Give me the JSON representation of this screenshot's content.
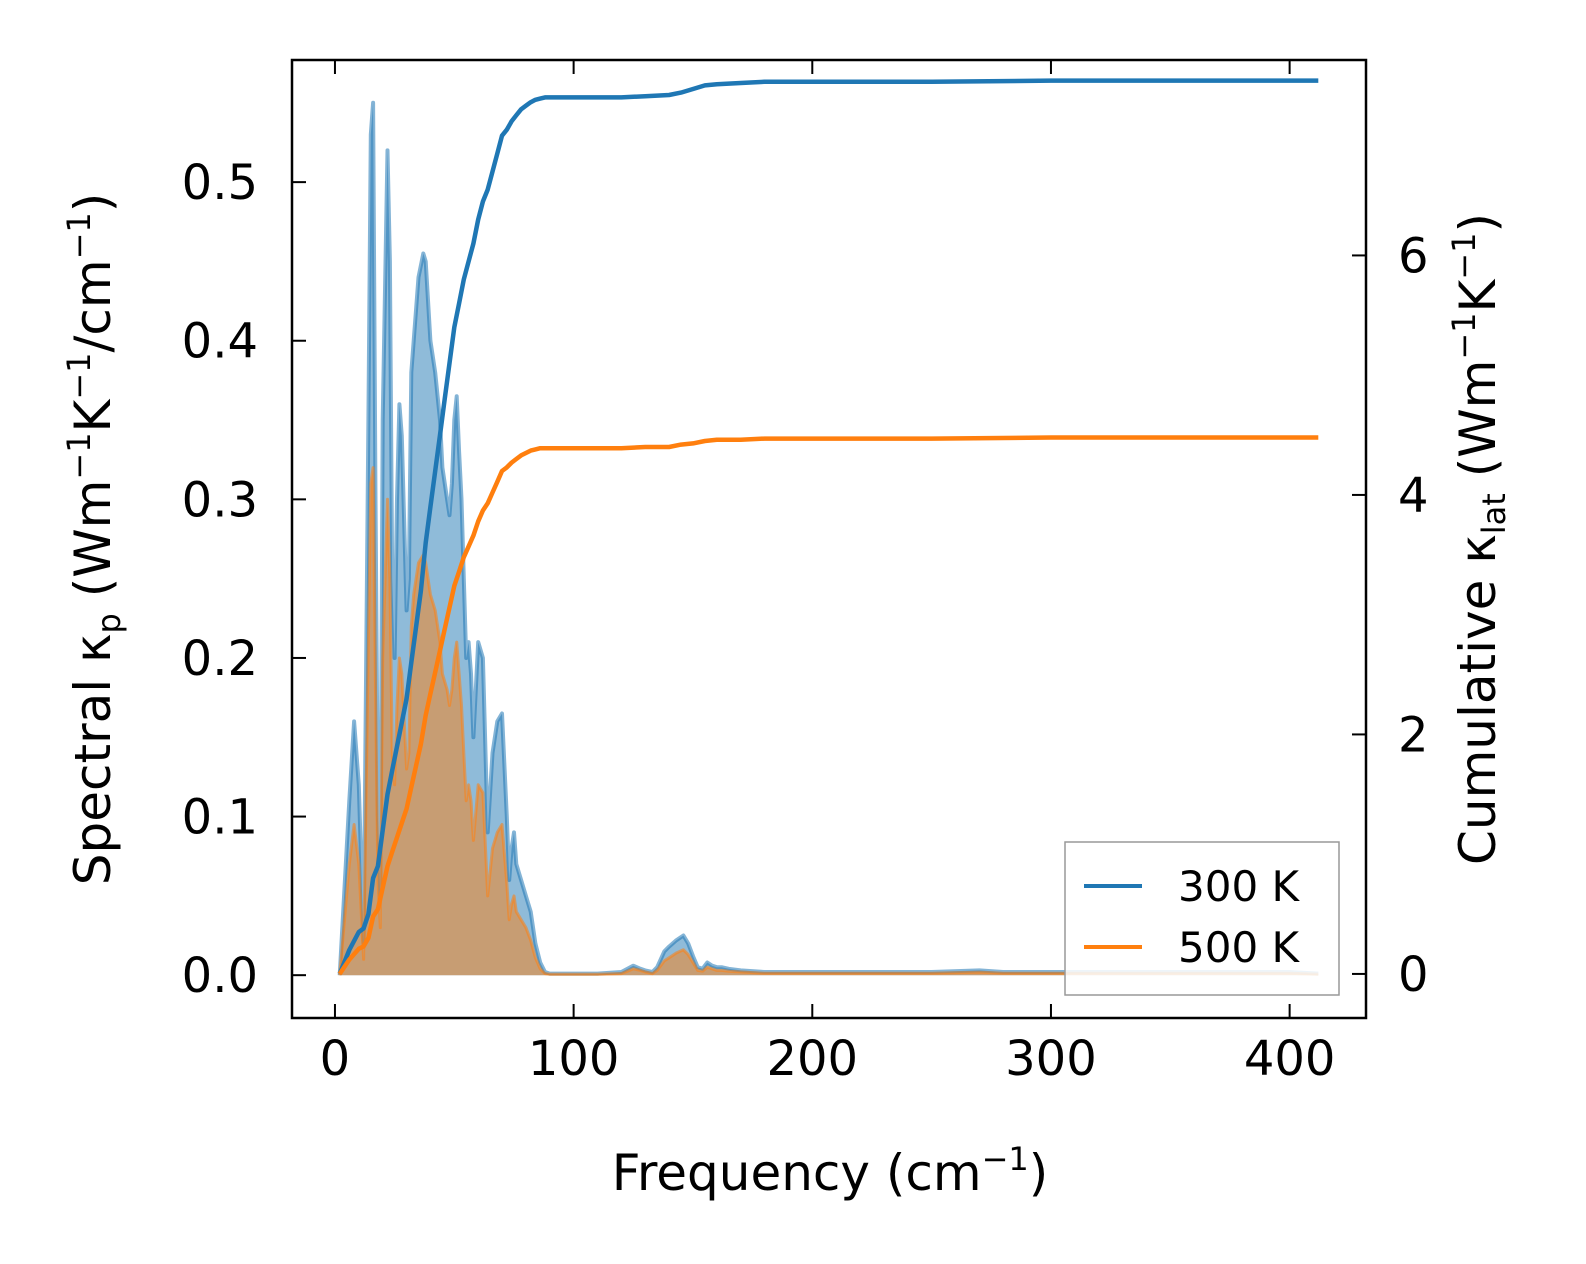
{
  "chart_data": {
    "type": "area+line",
    "xlabel": {
      "main": "Frequency (cm",
      "sup": "−1",
      "tail": ")"
    },
    "ylabel_left": {
      "p1": "Spectral κ",
      "sub": "p",
      "p2": " (Wm",
      "sup1": "−1",
      "p3": "K",
      "sup2": "−1",
      "p4": "/cm",
      "sup3": "−1",
      "p5": ")"
    },
    "ylabel_right": {
      "p1": "Cumulative κ",
      "sub": "lat",
      "p2": " (Wm",
      "sup1": "−1",
      "p3": "K",
      "sup2": "−1",
      "p4": ")"
    },
    "xlim": [
      -18,
      432
    ],
    "ylim_left": [
      -0.027,
      0.577
    ],
    "ylim_right": [
      -0.368,
      7.632
    ],
    "xticks": [
      0,
      100,
      200,
      300,
      400
    ],
    "xtick_labels": [
      "0",
      "100",
      "200",
      "300",
      "400"
    ],
    "yticks_left": [
      0.0,
      0.1,
      0.2,
      0.3,
      0.4,
      0.5
    ],
    "ytick_labels_left": [
      "0.0",
      "0.1",
      "0.2",
      "0.3",
      "0.4",
      "0.5"
    ],
    "yticks_right": [
      0,
      2,
      4,
      6
    ],
    "ytick_labels_right": [
      "0",
      "2",
      "4",
      "6"
    ],
    "colors": {
      "T300": "#1f77b4",
      "T500": "#ff7f0e"
    },
    "spectral": {
      "x": [
        2,
        6,
        8,
        10,
        12,
        14,
        15,
        16,
        17,
        18,
        19,
        20,
        22,
        23,
        24,
        25,
        26,
        27,
        28,
        30,
        31,
        32,
        33,
        34,
        35,
        37,
        38,
        40,
        42,
        44,
        45,
        47,
        48,
        49,
        50,
        51,
        52,
        53,
        54,
        55,
        56,
        57,
        58,
        60,
        62,
        64,
        66,
        68,
        70,
        72,
        73,
        74,
        75,
        76,
        78,
        80,
        82,
        84,
        86,
        88,
        90,
        92,
        95,
        100,
        110,
        120,
        125,
        128,
        130,
        133,
        135,
        138,
        140,
        143,
        146,
        148,
        150,
        152,
        154,
        156,
        158,
        160,
        162,
        165,
        170,
        180,
        200,
        250,
        270,
        280,
        300,
        350,
        400,
        412
      ],
      "k300": [
        0,
        0.11,
        0.16,
        0.12,
        0.02,
        0.35,
        0.53,
        0.55,
        0.3,
        0.1,
        0.05,
        0.35,
        0.52,
        0.45,
        0.25,
        0.2,
        0.3,
        0.36,
        0.34,
        0.23,
        0.25,
        0.38,
        0.4,
        0.42,
        0.44,
        0.455,
        0.45,
        0.4,
        0.38,
        0.35,
        0.32,
        0.3,
        0.29,
        0.31,
        0.35,
        0.365,
        0.33,
        0.3,
        0.25,
        0.2,
        0.21,
        0.19,
        0.15,
        0.21,
        0.2,
        0.09,
        0.14,
        0.16,
        0.165,
        0.1,
        0.06,
        0.08,
        0.09,
        0.07,
        0.06,
        0.05,
        0.04,
        0.02,
        0.008,
        0.002,
        0.001,
        0.001,
        0.001,
        0.001,
        0.001,
        0.002,
        0.006,
        0.004,
        0.003,
        0.002,
        0.005,
        0.015,
        0.018,
        0.022,
        0.025,
        0.02,
        0.012,
        0.005,
        0.004,
        0.008,
        0.006,
        0.005,
        0.005,
        0.004,
        0.003,
        0.002,
        0.002,
        0.002,
        0.003,
        0.002,
        0.002,
        0.002,
        0.002,
        0.001
      ],
      "k500": [
        0,
        0.07,
        0.095,
        0.07,
        0.01,
        0.21,
        0.31,
        0.32,
        0.18,
        0.06,
        0.03,
        0.2,
        0.3,
        0.25,
        0.14,
        0.12,
        0.17,
        0.2,
        0.19,
        0.13,
        0.14,
        0.22,
        0.24,
        0.25,
        0.26,
        0.265,
        0.26,
        0.24,
        0.23,
        0.21,
        0.19,
        0.18,
        0.17,
        0.18,
        0.2,
        0.21,
        0.19,
        0.17,
        0.14,
        0.11,
        0.12,
        0.11,
        0.085,
        0.12,
        0.115,
        0.05,
        0.08,
        0.09,
        0.095,
        0.058,
        0.035,
        0.045,
        0.05,
        0.04,
        0.035,
        0.03,
        0.022,
        0.011,
        0.004,
        0.001,
        0.0006,
        0.0006,
        0.0006,
        0.0006,
        0.0006,
        0.001,
        0.004,
        0.003,
        0.002,
        0.001,
        0.003,
        0.009,
        0.011,
        0.014,
        0.016,
        0.013,
        0.008,
        0.003,
        0.0025,
        0.005,
        0.004,
        0.003,
        0.003,
        0.0025,
        0.002,
        0.0012,
        0.0012,
        0.0012,
        0.0018,
        0.0012,
        0.0012,
        0.0012,
        0.0012,
        0.0006
      ]
    },
    "series": [
      {
        "name": "300 K",
        "x": [
          2,
          6,
          10,
          12,
          14,
          16,
          18,
          20,
          22,
          24,
          26,
          28,
          30,
          32,
          34,
          36,
          38,
          40,
          42,
          44,
          46,
          48,
          50,
          52,
          54,
          56,
          58,
          60,
          62,
          64,
          66,
          68,
          70,
          72,
          74,
          76,
          78,
          80,
          82,
          84,
          86,
          88,
          90,
          92,
          100,
          110,
          120,
          130,
          140,
          145,
          150,
          155,
          160,
          170,
          180,
          200,
          250,
          300,
          350,
          412
        ],
        "cum": [
          0,
          0.2,
          0.35,
          0.38,
          0.5,
          0.8,
          0.9,
          1.2,
          1.5,
          1.7,
          1.9,
          2.1,
          2.3,
          2.6,
          2.9,
          3.2,
          3.6,
          3.9,
          4.2,
          4.5,
          4.8,
          5.1,
          5.4,
          5.6,
          5.8,
          5.95,
          6.1,
          6.3,
          6.45,
          6.55,
          6.7,
          6.85,
          7.0,
          7.05,
          7.12,
          7.17,
          7.22,
          7.25,
          7.28,
          7.3,
          7.31,
          7.32,
          7.32,
          7.32,
          7.32,
          7.32,
          7.32,
          7.33,
          7.34,
          7.36,
          7.39,
          7.42,
          7.43,
          7.44,
          7.45,
          7.45,
          7.45,
          7.46,
          7.46,
          7.46
        ]
      },
      {
        "name": "500 K",
        "x": [
          2,
          6,
          10,
          12,
          14,
          16,
          18,
          20,
          22,
          24,
          26,
          28,
          30,
          32,
          34,
          36,
          38,
          40,
          42,
          44,
          46,
          48,
          50,
          52,
          54,
          56,
          58,
          60,
          62,
          64,
          66,
          68,
          70,
          72,
          74,
          76,
          78,
          80,
          82,
          84,
          86,
          88,
          90,
          92,
          100,
          110,
          120,
          130,
          140,
          145,
          150,
          155,
          160,
          170,
          180,
          200,
          250,
          300,
          350,
          412
        ],
        "cum": [
          0,
          0.12,
          0.21,
          0.23,
          0.3,
          0.48,
          0.54,
          0.72,
          0.9,
          1.02,
          1.14,
          1.26,
          1.38,
          1.56,
          1.74,
          1.92,
          2.16,
          2.34,
          2.52,
          2.7,
          2.88,
          3.06,
          3.24,
          3.36,
          3.48,
          3.57,
          3.66,
          3.78,
          3.87,
          3.93,
          4.02,
          4.11,
          4.2,
          4.23,
          4.27,
          4.3,
          4.33,
          4.35,
          4.37,
          4.38,
          4.39,
          4.39,
          4.39,
          4.39,
          4.39,
          4.39,
          4.39,
          4.4,
          4.4,
          4.42,
          4.43,
          4.45,
          4.46,
          4.46,
          4.47,
          4.47,
          4.47,
          4.48,
          4.48,
          4.48
        ]
      }
    ],
    "legend": {
      "position": "lower-right",
      "entries": [
        "300 K",
        "500 K"
      ]
    }
  }
}
